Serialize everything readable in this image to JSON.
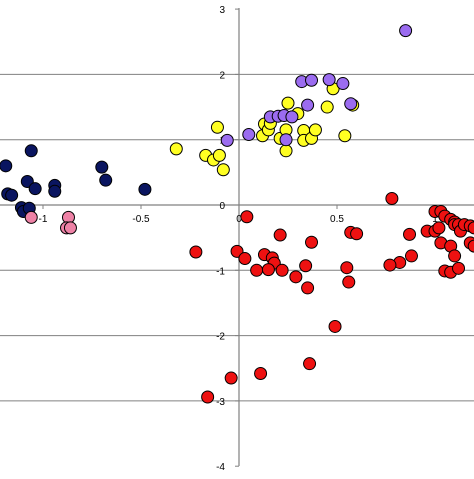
{
  "chart_data": {
    "type": "scatter",
    "title": "",
    "xlabel": "",
    "ylabel": "",
    "xlim": [
      -1.2,
      1.2
    ],
    "ylim": [
      -4,
      3
    ],
    "grid": true,
    "x_ticks": [
      {
        "value": -1,
        "label": "-1"
      },
      {
        "value": -0.5,
        "label": "-0.5"
      },
      {
        "value": 0,
        "label": "0"
      },
      {
        "value": 0.5,
        "label": "0.5"
      },
      {
        "value": 1,
        "label": "1"
      }
    ],
    "y_ticks": [
      {
        "value": 3,
        "label": "3"
      },
      {
        "value": 2,
        "label": "2"
      },
      {
        "value": 1,
        "label": "1"
      },
      {
        "value": 0,
        "label": "0"
      },
      {
        "value": -1,
        "label": "-1"
      },
      {
        "value": -2,
        "label": "-2"
      },
      {
        "value": -3,
        "label": "-3"
      },
      {
        "value": -4,
        "label": "-4"
      }
    ],
    "series": [
      {
        "color": "#0a1560",
        "points": [
          [
            -1.19,
            0.6
          ],
          [
            -1.18,
            0.17
          ],
          [
            -1.16,
            0.15
          ],
          [
            -1.08,
            0.36
          ],
          [
            -1.06,
            0.83
          ],
          [
            -1.04,
            0.25
          ],
          [
            -1.11,
            -0.04
          ],
          [
            -1.1,
            -0.1
          ],
          [
            -1.07,
            -0.05
          ],
          [
            -0.94,
            0.3
          ],
          [
            -0.94,
            0.21
          ],
          [
            -0.7,
            0.58
          ],
          [
            -0.68,
            0.38
          ],
          [
            -0.48,
            0.24
          ]
        ]
      },
      {
        "color": "#ee82a6",
        "points": [
          [
            -1.06,
            -0.19
          ],
          [
            -0.87,
            -0.19
          ],
          [
            -0.88,
            -0.35
          ],
          [
            -0.86,
            -0.35
          ]
        ]
      },
      {
        "color": "#ffff22",
        "points": [
          [
            -0.32,
            0.86
          ],
          [
            -0.17,
            0.76
          ],
          [
            -0.13,
            0.69
          ],
          [
            -0.11,
            1.19
          ],
          [
            -0.1,
            0.76
          ],
          [
            -0.08,
            0.54
          ],
          [
            0.12,
            1.06
          ],
          [
            0.13,
            1.24
          ],
          [
            0.15,
            1.15
          ],
          [
            0.16,
            1.25
          ],
          [
            0.21,
            1.02
          ],
          [
            0.24,
            1.15
          ],
          [
            0.24,
            0.83
          ],
          [
            0.25,
            1.56
          ],
          [
            0.3,
            1.4
          ],
          [
            0.33,
            1.14
          ],
          [
            0.33,
            0.99
          ],
          [
            0.37,
            1.02
          ],
          [
            0.39,
            1.15
          ],
          [
            0.45,
            1.5
          ],
          [
            0.48,
            1.78
          ],
          [
            0.54,
            1.06
          ],
          [
            0.58,
            1.53
          ]
        ]
      },
      {
        "color": "#9b6cf0",
        "points": [
          [
            -0.06,
            0.99
          ],
          [
            0.05,
            1.08
          ],
          [
            0.16,
            1.35
          ],
          [
            0.2,
            1.36
          ],
          [
            0.23,
            1.37
          ],
          [
            0.27,
            1.35
          ],
          [
            0.32,
            1.89
          ],
          [
            0.35,
            1.53
          ],
          [
            0.37,
            1.91
          ],
          [
            0.46,
            1.92
          ],
          [
            0.53,
            1.86
          ],
          [
            0.57,
            1.55
          ],
          [
            0.85,
            2.67
          ],
          [
            0.24,
            1.0
          ]
        ]
      },
      {
        "color": "#ee1111",
        "points": [
          [
            0.78,
            0.1
          ],
          [
            1.0,
            -0.1
          ],
          [
            1.03,
            -0.1
          ],
          [
            1.05,
            -0.17
          ],
          [
            1.08,
            -0.22
          ],
          [
            1.1,
            -0.26
          ],
          [
            0.96,
            -0.4
          ],
          [
            1.0,
            -0.4
          ],
          [
            1.02,
            -0.35
          ],
          [
            1.1,
            -0.3
          ],
          [
            1.12,
            -0.3
          ],
          [
            1.13,
            -0.4
          ],
          [
            1.15,
            -0.3
          ],
          [
            1.18,
            -0.32
          ],
          [
            1.2,
            -0.35
          ],
          [
            1.03,
            -0.58
          ],
          [
            1.08,
            -0.63
          ],
          [
            0.87,
            -0.45
          ],
          [
            0.88,
            -0.78
          ],
          [
            0.82,
            -0.88
          ],
          [
            0.77,
            -0.92
          ],
          [
            1.05,
            -1.01
          ],
          [
            1.08,
            -1.03
          ],
          [
            1.1,
            -0.78
          ],
          [
            1.12,
            -0.97
          ],
          [
            1.18,
            -0.58
          ],
          [
            1.2,
            -0.63
          ],
          [
            0.04,
            -0.18
          ],
          [
            0.21,
            -0.46
          ],
          [
            0.37,
            -0.57
          ],
          [
            0.57,
            -0.42
          ],
          [
            0.6,
            -0.44
          ],
          [
            -0.22,
            -0.72
          ],
          [
            -0.01,
            -0.71
          ],
          [
            0.03,
            -0.82
          ],
          [
            0.09,
            -1.0
          ],
          [
            0.13,
            -0.76
          ],
          [
            0.17,
            -0.81
          ],
          [
            0.18,
            -0.89
          ],
          [
            0.15,
            -0.99
          ],
          [
            0.22,
            -1.0
          ],
          [
            0.29,
            -1.1
          ],
          [
            0.34,
            -0.93
          ],
          [
            0.35,
            -1.27
          ],
          [
            0.55,
            -0.96
          ],
          [
            0.56,
            -1.18
          ],
          [
            0.49,
            -1.86
          ],
          [
            0.36,
            -2.43
          ],
          [
            0.11,
            -2.58
          ],
          [
            -0.04,
            -2.65
          ],
          [
            -0.16,
            -2.94
          ]
        ]
      }
    ]
  }
}
